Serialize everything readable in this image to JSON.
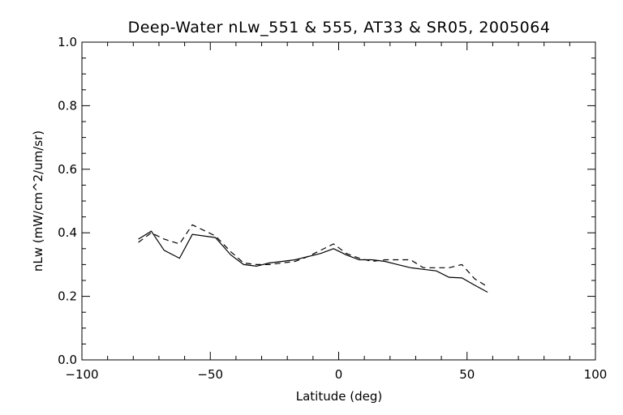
{
  "chart_data": {
    "type": "line",
    "title": "Deep-Water nLw_551 & 555, AT33 & SR05, 2005064",
    "xlabel": "Latitude (deg)",
    "ylabel": "nLw (mW/cm^2/um/sr)",
    "xlim": [
      -100,
      100
    ],
    "ylim": [
      0.0,
      1.0
    ],
    "x_ticks": [
      -100,
      -50,
      0,
      50,
      100
    ],
    "x_tick_labels": [
      "−100",
      "−50",
      "0",
      "50",
      "100"
    ],
    "y_ticks": [
      0.0,
      0.2,
      0.4,
      0.6,
      0.8,
      1.0
    ],
    "y_tick_labels": [
      "0.0",
      "0.2",
      "0.4",
      "0.6",
      "0.8",
      "1.0"
    ],
    "grid": false,
    "series": [
      {
        "style": "solid",
        "color": "#000000",
        "x": [
          -78,
          -73,
          -68,
          -62,
          -57,
          -48,
          -42,
          -37,
          -32,
          -27,
          -22,
          -17,
          -12,
          -7,
          -2,
          3,
          8,
          13,
          18,
          23,
          28,
          33,
          38,
          43,
          48,
          53,
          58
        ],
        "y": [
          0.38,
          0.405,
          0.345,
          0.32,
          0.395,
          0.385,
          0.33,
          0.3,
          0.295,
          0.305,
          0.31,
          0.315,
          0.325,
          0.335,
          0.35,
          0.33,
          0.315,
          0.315,
          0.31,
          0.3,
          0.29,
          0.285,
          0.28,
          0.26,
          0.258,
          0.235,
          0.213
        ]
      },
      {
        "style": "dashed",
        "color": "#000000",
        "x": [
          -78,
          -73,
          -68,
          -62,
          -57,
          -48,
          -42,
          -37,
          -32,
          -27,
          -22,
          -17,
          -12,
          -7,
          -2,
          3,
          8,
          13,
          18,
          23,
          28,
          33,
          38,
          43,
          48,
          53,
          58
        ],
        "y": [
          0.37,
          0.4,
          0.38,
          0.365,
          0.425,
          0.39,
          0.34,
          0.305,
          0.3,
          0.3,
          0.305,
          0.31,
          0.325,
          0.345,
          0.365,
          0.335,
          0.32,
          0.31,
          0.315,
          0.315,
          0.315,
          0.29,
          0.29,
          0.29,
          0.3,
          0.255,
          0.23
        ]
      }
    ]
  }
}
